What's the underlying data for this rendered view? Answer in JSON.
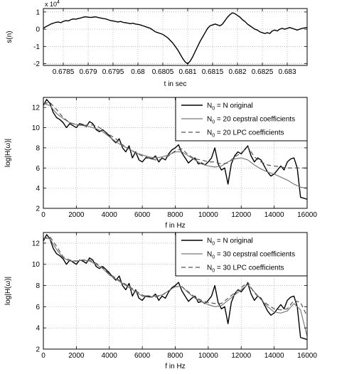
{
  "chart_data": [
    {
      "type": "line",
      "xlabel": "t in sec",
      "ylabel": "s(n)",
      "exponent_base": "x 10",
      "exponent_power": "4",
      "xlim": [
        0.6781,
        0.6834
      ],
      "ylim": [
        -2.1,
        1.2
      ],
      "xticks": [
        0.6785,
        0.679,
        0.6795,
        0.68,
        0.6805,
        0.681,
        0.6815,
        0.682,
        0.6825,
        0.683
      ],
      "xtick_labels": [
        "0.6785",
        "0.679",
        "0.6795",
        "0.68",
        "0.6805",
        "0.681",
        "0.6815",
        "0.682",
        "0.6825",
        "0.683"
      ],
      "yticks": [
        -2,
        -1,
        0,
        1
      ],
      "ytick_labels": [
        "-2",
        "-1",
        "0",
        "1"
      ],
      "grid": true,
      "series": [
        {
          "color": "#000000",
          "x": [
            0.6781,
            0.67815,
            0.6782,
            0.67825,
            0.6783,
            0.67835,
            0.6784,
            0.67845,
            0.6785,
            0.67855,
            0.6786,
            0.67865,
            0.6787,
            0.67875,
            0.6788,
            0.67885,
            0.6789,
            0.67895,
            0.679,
            0.67905,
            0.6791,
            0.67915,
            0.6792,
            0.67925,
            0.6793,
            0.67935,
            0.6794,
            0.67945,
            0.6795,
            0.67955,
            0.6796,
            0.67965,
            0.6797,
            0.67975,
            0.6798,
            0.67985,
            0.6799,
            0.67995,
            0.68,
            0.68005,
            0.6801,
            0.68015,
            0.6802,
            0.68025,
            0.6803,
            0.68035,
            0.6804,
            0.68045,
            0.6805,
            0.68055,
            0.6806,
            0.68065,
            0.6807,
            0.68075,
            0.6808,
            0.68085,
            0.6809,
            0.68095,
            0.681,
            0.68105,
            0.6811,
            0.68115,
            0.6812,
            0.68125,
            0.6813,
            0.68135,
            0.6814,
            0.68145,
            0.6815,
            0.68155,
            0.6816,
            0.68165,
            0.6817,
            0.68175,
            0.6818,
            0.68185,
            0.6819,
            0.68195,
            0.682,
            0.68205,
            0.6821,
            0.68215,
            0.6822,
            0.68225,
            0.6823,
            0.68235,
            0.6824,
            0.68245,
            0.6825,
            0.68255,
            0.6826,
            0.68265,
            0.6827,
            0.68275,
            0.6828,
            0.68285,
            0.6829,
            0.68295,
            0.683,
            0.68305,
            0.6831,
            0.68315,
            0.6832,
            0.68325,
            0.6833,
            0.68335,
            0.6834
          ],
          "y": [
            0.05,
            0.15,
            0.22,
            0.3,
            0.35,
            0.4,
            0.42,
            0.38,
            0.45,
            0.5,
            0.48,
            0.55,
            0.6,
            0.58,
            0.62,
            0.65,
            0.7,
            0.72,
            0.7,
            0.68,
            0.7,
            0.72,
            0.68,
            0.65,
            0.62,
            0.6,
            0.55,
            0.5,
            0.48,
            0.45,
            0.42,
            0.45,
            0.4,
            0.38,
            0.35,
            0.32,
            0.35,
            0.3,
            0.28,
            0.25,
            0.2,
            0.15,
            0.1,
            0.05,
            -0.05,
            -0.15,
            -0.2,
            -0.25,
            -0.3,
            -0.4,
            -0.5,
            -0.65,
            -0.8,
            -1.0,
            -1.2,
            -1.45,
            -1.7,
            -1.9,
            -2.0,
            -1.85,
            -1.6,
            -1.3,
            -1.0,
            -0.7,
            -0.45,
            -0.2,
            0.05,
            0.2,
            0.25,
            0.3,
            0.25,
            0.2,
            0.3,
            0.5,
            0.7,
            0.85,
            0.95,
            0.9,
            0.8,
            0.7,
            0.55,
            0.45,
            0.3,
            0.2,
            0.1,
            0.0,
            -0.05,
            -0.15,
            -0.2,
            -0.25,
            -0.2,
            -0.25,
            -0.1,
            -0.05,
            -0.1,
            0.0,
            0.05,
            0.0,
            0.05,
            0.1,
            0.05,
            0.0,
            -0.05,
            0.0,
            0.05,
            0.08,
            0.1
          ]
        }
      ]
    },
    {
      "type": "line",
      "xlabel": "f in Hz",
      "ylabel": "log|H(ω)|",
      "xlim": [
        0,
        16000
      ],
      "ylim": [
        2,
        13
      ],
      "xticks": [
        0,
        2000,
        4000,
        6000,
        8000,
        10000,
        12000,
        14000,
        16000
      ],
      "xtick_labels": [
        "0",
        "2000",
        "4000",
        "6000",
        "8000",
        "10000",
        "12000",
        "14000",
        "16000"
      ],
      "yticks": [
        2,
        4,
        6,
        8,
        10,
        12
      ],
      "ytick_labels": [
        "2",
        "4",
        "6",
        "8",
        "10",
        "12"
      ],
      "grid": true,
      "legend_position": "top-right",
      "series": [
        {
          "name_main": "N",
          "name_sub": "0",
          "name_rest": " = N original",
          "color": "#000000",
          "dash": "",
          "x": [
            0,
            200,
            400,
            600,
            800,
            1000,
            1200,
            1400,
            1600,
            1800,
            2000,
            2200,
            2400,
            2600,
            2800,
            3000,
            3200,
            3400,
            3600,
            3800,
            4000,
            4200,
            4400,
            4600,
            4800,
            5000,
            5200,
            5400,
            5600,
            5800,
            6000,
            6200,
            6400,
            6600,
            6800,
            7000,
            7200,
            7400,
            7600,
            7800,
            8000,
            8200,
            8400,
            8600,
            8800,
            9000,
            9200,
            9400,
            9600,
            9800,
            10000,
            10200,
            10400,
            10600,
            10800,
            11000,
            11200,
            11400,
            11600,
            11800,
            12000,
            12200,
            12400,
            12600,
            12800,
            13000,
            13200,
            13400,
            13600,
            13800,
            14000,
            14200,
            14400,
            14600,
            14800,
            15000,
            15200,
            15400,
            15600,
            15800,
            16000
          ],
          "y": [
            12.2,
            12.8,
            12.4,
            11.5,
            11.0,
            10.8,
            10.5,
            10.0,
            10.4,
            10.2,
            10.0,
            10.4,
            10.3,
            10.1,
            10.6,
            10.4,
            9.8,
            9.6,
            9.8,
            9.5,
            9.2,
            8.8,
            8.5,
            8.9,
            8.0,
            7.6,
            8.2,
            7.0,
            7.6,
            6.8,
            6.6,
            7.0,
            7.0,
            6.9,
            7.2,
            6.6,
            7.0,
            6.8,
            7.4,
            7.8,
            8.0,
            8.3,
            7.5,
            7.0,
            6.5,
            6.8,
            7.0,
            6.4,
            6.5,
            6.3,
            6.6,
            7.0,
            8.0,
            6.4,
            5.8,
            6.0,
            4.4,
            6.4,
            7.2,
            7.6,
            7.4,
            7.8,
            8.2,
            7.2,
            6.6,
            7.0,
            6.8,
            6.2,
            5.6,
            5.2,
            5.4,
            5.8,
            6.2,
            5.8,
            6.6,
            6.9,
            7.0,
            6.0,
            3.1,
            3.0,
            2.9
          ]
        },
        {
          "name_main": "N",
          "name_sub": "0",
          "name_rest": " = 20 cepstral coefficients",
          "color": "#7a7a7a",
          "dash": "",
          "x": [
            0,
            400,
            800,
            1200,
            1600,
            2000,
            2400,
            2800,
            3200,
            3600,
            4000,
            4400,
            4800,
            5200,
            5600,
            6000,
            6400,
            6800,
            7200,
            7600,
            8000,
            8400,
            8800,
            9200,
            9600,
            10000,
            10400,
            10800,
            11200,
            11600,
            12000,
            12400,
            12800,
            13200,
            13600,
            14000,
            14400,
            14800,
            15200,
            15600,
            16000
          ],
          "y": [
            12.4,
            12.2,
            11.4,
            10.9,
            10.5,
            10.3,
            10.2,
            10.1,
            9.9,
            9.6,
            9.1,
            8.6,
            8.2,
            7.9,
            7.5,
            7.3,
            7.1,
            7.0,
            7.1,
            7.3,
            7.6,
            7.6,
            7.2,
            6.8,
            6.4,
            6.2,
            6.1,
            6.2,
            6.6,
            6.9,
            7.0,
            6.8,
            6.3,
            5.9,
            5.6,
            5.4,
            5.1,
            4.8,
            4.4,
            4.1,
            4.0
          ]
        },
        {
          "name_main": "N",
          "name_sub": "0",
          "name_rest": " = 20 LPC coefficients",
          "color": "#555555",
          "dash": "6,4",
          "x": [
            0,
            400,
            800,
            1200,
            1600,
            2000,
            2400,
            2800,
            3200,
            3600,
            4000,
            4400,
            4800,
            5200,
            5600,
            6000,
            6400,
            6800,
            7200,
            7600,
            8000,
            8400,
            8800,
            9200,
            9600,
            10000,
            10400,
            10800,
            11200,
            11600,
            12000,
            12400,
            12800,
            13200,
            13600,
            14000,
            14400,
            14800,
            15200,
            15600,
            16000
          ],
          "y": [
            12.4,
            12.5,
            11.8,
            11.0,
            10.5,
            10.3,
            10.2,
            10.3,
            10.2,
            9.8,
            9.3,
            8.9,
            8.3,
            7.9,
            7.5,
            7.2,
            7.0,
            6.8,
            6.9,
            7.2,
            7.7,
            7.9,
            7.3,
            6.9,
            6.8,
            6.6,
            6.6,
            6.4,
            6.5,
            7.1,
            7.5,
            8.1,
            7.1,
            6.6,
            6.3,
            6.2,
            6.1,
            6.0,
            6.0,
            6.0,
            6.0
          ]
        }
      ]
    },
    {
      "type": "line",
      "xlabel": "f in Hz",
      "ylabel": "log|H(ω)|",
      "xlim": [
        0,
        16000
      ],
      "ylim": [
        2,
        13
      ],
      "xticks": [
        0,
        2000,
        4000,
        6000,
        8000,
        10000,
        12000,
        14000,
        16000
      ],
      "xtick_labels": [
        "0",
        "2000",
        "4000",
        "6000",
        "8000",
        "10000",
        "12000",
        "14000",
        "16000"
      ],
      "yticks": [
        2,
        4,
        6,
        8,
        10,
        12
      ],
      "ytick_labels": [
        "2",
        "4",
        "6",
        "8",
        "10",
        "12"
      ],
      "grid": true,
      "legend_position": "top-right",
      "series": [
        {
          "name_main": "N",
          "name_sub": "0",
          "name_rest": " = N original",
          "color": "#000000",
          "dash": "",
          "x": [
            0,
            200,
            400,
            600,
            800,
            1000,
            1200,
            1400,
            1600,
            1800,
            2000,
            2200,
            2400,
            2600,
            2800,
            3000,
            3200,
            3400,
            3600,
            3800,
            4000,
            4200,
            4400,
            4600,
            4800,
            5000,
            5200,
            5400,
            5600,
            5800,
            6000,
            6200,
            6400,
            6600,
            6800,
            7000,
            7200,
            7400,
            7600,
            7800,
            8000,
            8200,
            8400,
            8600,
            8800,
            9000,
            9200,
            9400,
            9600,
            9800,
            10000,
            10200,
            10400,
            10600,
            10800,
            11000,
            11200,
            11400,
            11600,
            11800,
            12000,
            12200,
            12400,
            12600,
            12800,
            13000,
            13200,
            13400,
            13600,
            13800,
            14000,
            14200,
            14400,
            14600,
            14800,
            15000,
            15200,
            15400,
            15600,
            15800,
            16000
          ],
          "y": [
            12.2,
            12.8,
            12.4,
            11.5,
            11.0,
            10.8,
            10.5,
            10.0,
            10.4,
            10.2,
            10.0,
            10.4,
            10.3,
            10.1,
            10.6,
            10.4,
            9.8,
            9.6,
            9.8,
            9.5,
            9.2,
            8.8,
            8.5,
            8.9,
            8.0,
            7.6,
            8.2,
            7.0,
            7.6,
            6.8,
            6.6,
            7.0,
            7.0,
            6.9,
            7.2,
            6.6,
            7.0,
            6.8,
            7.4,
            7.8,
            8.0,
            8.3,
            7.5,
            7.0,
            6.5,
            6.8,
            7.0,
            6.4,
            6.5,
            6.3,
            6.6,
            7.0,
            8.0,
            6.4,
            5.8,
            6.0,
            4.4,
            6.4,
            7.2,
            7.6,
            7.4,
            7.8,
            8.2,
            7.2,
            6.6,
            7.0,
            6.8,
            6.2,
            5.6,
            5.2,
            5.4,
            5.8,
            6.2,
            5.8,
            6.6,
            6.9,
            7.0,
            6.0,
            3.1,
            3.0,
            2.9
          ]
        },
        {
          "name_main": "N",
          "name_sub": "0",
          "name_rest": " = 30 cepstral coefficients",
          "color": "#7a7a7a",
          "dash": "",
          "x": [
            0,
            400,
            800,
            1200,
            1600,
            2000,
            2400,
            2800,
            3200,
            3600,
            4000,
            4400,
            4800,
            5200,
            5600,
            6000,
            6400,
            6800,
            7200,
            7600,
            8000,
            8400,
            8800,
            9200,
            9600,
            10000,
            10400,
            10800,
            11200,
            11600,
            12000,
            12400,
            12800,
            13200,
            13600,
            14000,
            14400,
            14800,
            15200,
            15600,
            16000
          ],
          "y": [
            12.5,
            12.4,
            11.4,
            10.6,
            10.3,
            10.3,
            10.4,
            10.3,
            10.0,
            9.6,
            9.0,
            8.6,
            8.2,
            7.8,
            7.4,
            7.0,
            6.9,
            7.0,
            7.1,
            7.5,
            7.9,
            7.9,
            7.3,
            6.8,
            6.5,
            6.2,
            6.0,
            6.1,
            6.6,
            7.1,
            7.6,
            8.1,
            7.4,
            6.7,
            6.0,
            5.5,
            5.4,
            5.6,
            6.3,
            5.7,
            3.2
          ]
        },
        {
          "name_main": "N",
          "name_sub": "0",
          "name_rest": " = 30 LPC coefficients",
          "color": "#555555",
          "dash": "6,4",
          "x": [
            0,
            400,
            800,
            1200,
            1600,
            2000,
            2400,
            2800,
            3200,
            3600,
            4000,
            4400,
            4800,
            5200,
            5600,
            6000,
            6400,
            6800,
            7200,
            7600,
            8000,
            8400,
            8800,
            9200,
            9600,
            10000,
            10400,
            10800,
            11200,
            11600,
            12000,
            12400,
            12800,
            13200,
            13600,
            14000,
            14400,
            14800,
            15200,
            15600,
            16000
          ],
          "y": [
            12.4,
            12.6,
            11.7,
            10.7,
            10.4,
            10.3,
            10.4,
            10.4,
            10.1,
            9.7,
            9.1,
            8.7,
            8.3,
            7.9,
            7.5,
            7.1,
            6.9,
            6.9,
            7.1,
            7.5,
            7.9,
            7.9,
            7.4,
            6.9,
            6.6,
            6.4,
            6.3,
            6.3,
            6.8,
            7.3,
            7.8,
            8.3,
            7.3,
            6.7,
            6.2,
            5.8,
            5.7,
            5.8,
            6.6,
            6.4,
            5.1
          ]
        }
      ]
    }
  ]
}
